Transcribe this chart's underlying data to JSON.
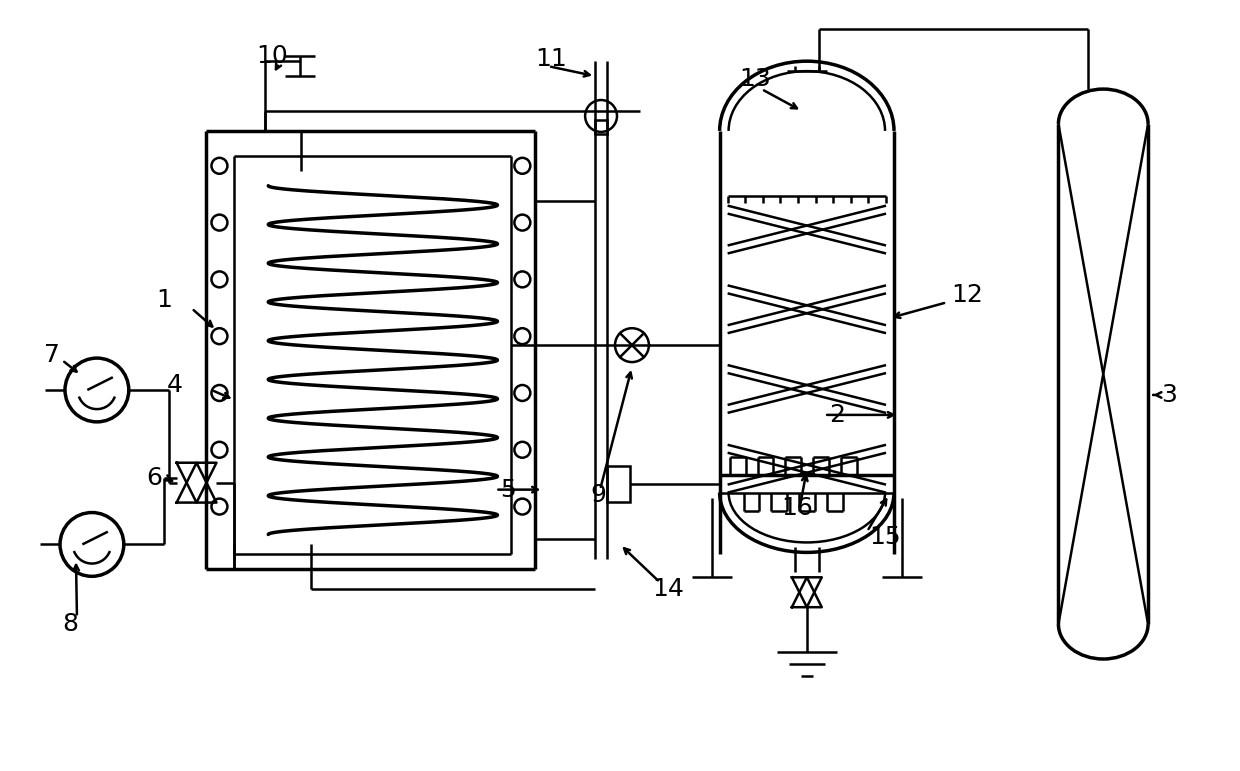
{
  "bg_color": "#ffffff",
  "line_color": "#000000",
  "lw": 1.8,
  "lw_thick": 2.5
}
